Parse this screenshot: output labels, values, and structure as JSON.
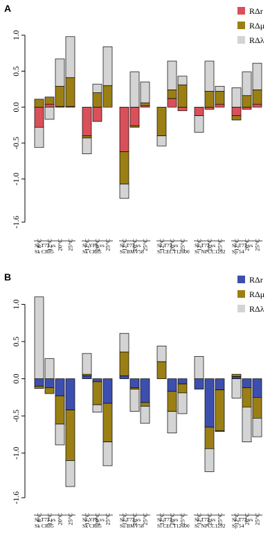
{
  "chart_data": [
    {
      "panel_label": "A",
      "type": "bar",
      "stacked": true,
      "ylim": [
        -1.6,
        1.2
      ],
      "y_ticks": [
        -1.6,
        -1.0,
        -0.5,
        0.0,
        0.5,
        1.0
      ],
      "y_tick_labels": [
        "-1.6",
        "-1.0",
        "-0.5",
        "0.0",
        "0.5",
        "1.0"
      ],
      "legend_position": "top-right",
      "categories": [
        "8°C",
        "12°C",
        "20°C",
        "25°C",
        "12°C",
        "20°C",
        "25°C",
        "12°C",
        "20°C",
        "25°C",
        "12°C",
        "20°C",
        "25°C",
        "12°C",
        "20°C",
        "25°C",
        "12°C",
        "20°C",
        "25°C"
      ],
      "group_sizes": [
        4,
        3,
        3,
        3,
        3,
        3
      ],
      "groups": [
        [
          "Sc T73 vs",
          "Sk CR85"
        ],
        [
          "Sc YPS vs",
          "Sk CR85"
        ],
        [
          "Sc T73 vs",
          "Su BMV58"
        ],
        [
          "Sc T73 vs",
          "Si CECT12600"
        ],
        [
          "Sc T73 vs",
          "Sc NPCC1292"
        ],
        [
          "Sc T73 vs",
          "Sp 54"
        ]
      ],
      "series": [
        {
          "name": "RΔr",
          "color": "#d9505a",
          "values": [
            -0.28,
            0.04,
            0.01,
            0.01,
            -0.4,
            -0.2,
            0.0,
            -0.62,
            -0.26,
            0.02,
            0.0,
            0.12,
            -0.05,
            -0.12,
            -0.03,
            0.04,
            -0.12,
            -0.03,
            0.04
          ]
        },
        {
          "name": "RΔμ",
          "color": "#9b7f14",
          "values": [
            0.11,
            0.1,
            0.28,
            0.4,
            -0.03,
            0.2,
            0.3,
            -0.45,
            -0.02,
            0.04,
            -0.4,
            0.12,
            0.31,
            0.0,
            0.22,
            0.18,
            -0.06,
            0.16,
            0.2
          ]
        },
        {
          "name": "RΔλ",
          "color": "#d4d4d4",
          "values": [
            -0.28,
            -0.17,
            0.38,
            0.57,
            -0.22,
            0.12,
            0.54,
            -0.2,
            0.49,
            0.29,
            -0.14,
            0.4,
            0.12,
            -0.23,
            0.42,
            0.07,
            0.27,
            0.33,
            0.37
          ]
        }
      ]
    },
    {
      "panel_label": "B",
      "type": "bar",
      "stacked": true,
      "ylim": [
        -1.6,
        1.2
      ],
      "y_ticks": [
        -1.6,
        -1.0,
        -0.5,
        0.0,
        0.5,
        1.0
      ],
      "y_tick_labels": [
        "-1.6",
        "-1.0",
        "-0.5",
        "0.0",
        "0.5",
        "1.0"
      ],
      "legend_position": "top-right",
      "categories": [
        "8°C",
        "12°C",
        "20°C",
        "25°C",
        "12°C",
        "20°C",
        "25°C",
        "12°C",
        "20°C",
        "25°C",
        "12°C",
        "20°C",
        "25°C",
        "12°C",
        "20°C",
        "25°C",
        "12°C",
        "20°C",
        "25°C"
      ],
      "group_sizes": [
        4,
        3,
        3,
        3,
        3,
        3
      ],
      "groups": [
        [
          "Sc T73 vs",
          "Sk CR85"
        ],
        [
          "Sc YPS vs",
          "Sk CR85"
        ],
        [
          "Sc T73 vs",
          "Su BMV58"
        ],
        [
          "Sc T73 vs",
          "Si CECT12600"
        ],
        [
          "Sc T73 vs",
          "Sc NPCC1292"
        ],
        [
          "Sc T73 vs",
          "Sp 54"
        ]
      ],
      "series": [
        {
          "name": "RΔr",
          "color": "#3d4fae",
          "values": [
            -0.1,
            -0.12,
            -0.23,
            -0.42,
            0.04,
            -0.04,
            -0.33,
            0.04,
            -0.12,
            -0.32,
            0.0,
            -0.17,
            -0.07,
            -0.14,
            -0.65,
            -0.15,
            0.03,
            -0.12,
            -0.25
          ]
        },
        {
          "name": "RΔμ",
          "color": "#9b7f14",
          "values": [
            -0.03,
            -0.08,
            -0.38,
            -0.68,
            0.02,
            -0.31,
            -0.52,
            0.32,
            -0.02,
            -0.05,
            0.23,
            -0.27,
            -0.12,
            0.0,
            -0.29,
            -0.55,
            0.03,
            -0.26,
            -0.28
          ]
        },
        {
          "name": "RΔλ",
          "color": "#d4d4d4",
          "values": [
            1.1,
            0.27,
            -0.28,
            -0.35,
            0.28,
            -0.1,
            -0.32,
            0.25,
            -0.3,
            -0.23,
            0.21,
            -0.29,
            -0.28,
            0.3,
            -0.31,
            -0.01,
            -0.26,
            -0.47,
            -0.25
          ]
        }
      ]
    }
  ]
}
